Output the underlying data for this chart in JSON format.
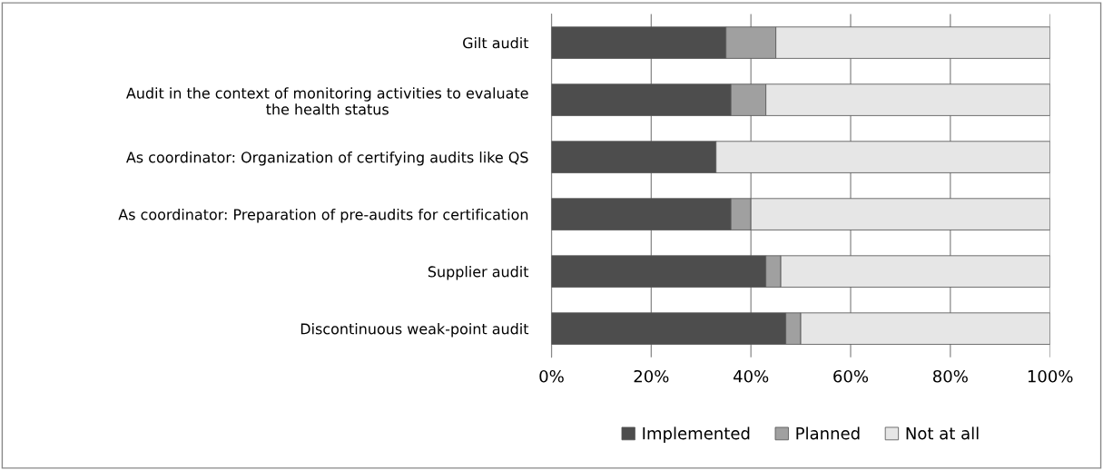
{
  "chart_data": {
    "type": "bar",
    "orientation": "horizontal",
    "stacked": true,
    "categories": [
      "Gilt audit",
      "Audit in the context of monitoring activities to evaluate\nthe health status",
      "As coordinator: Organization of certifying audits like QS",
      "As coordinator: Preparation of pre-audits for certification",
      "Supplier audit",
      "Discontinuous weak-point audit"
    ],
    "series": [
      {
        "name": "Implemented",
        "color": "#4d4d4d",
        "values": [
          35,
          36,
          33,
          36,
          43,
          47
        ]
      },
      {
        "name": "Planned",
        "color": "#a0a0a0",
        "values": [
          10,
          7,
          0,
          4,
          3,
          3
        ]
      },
      {
        "name": "Not at all",
        "color": "#e6e6e6",
        "values": [
          55,
          57,
          67,
          60,
          54,
          50
        ]
      }
    ],
    "xlim": [
      0,
      100
    ],
    "xticks": [
      {
        "value": 0,
        "label": "0%"
      },
      {
        "value": 20,
        "label": "20%"
      },
      {
        "value": 40,
        "label": "40%"
      },
      {
        "value": 60,
        "label": "60%"
      },
      {
        "value": 80,
        "label": "80%"
      },
      {
        "value": 100,
        "label": "100%"
      }
    ],
    "grid": "x",
    "legend": "bottom"
  }
}
